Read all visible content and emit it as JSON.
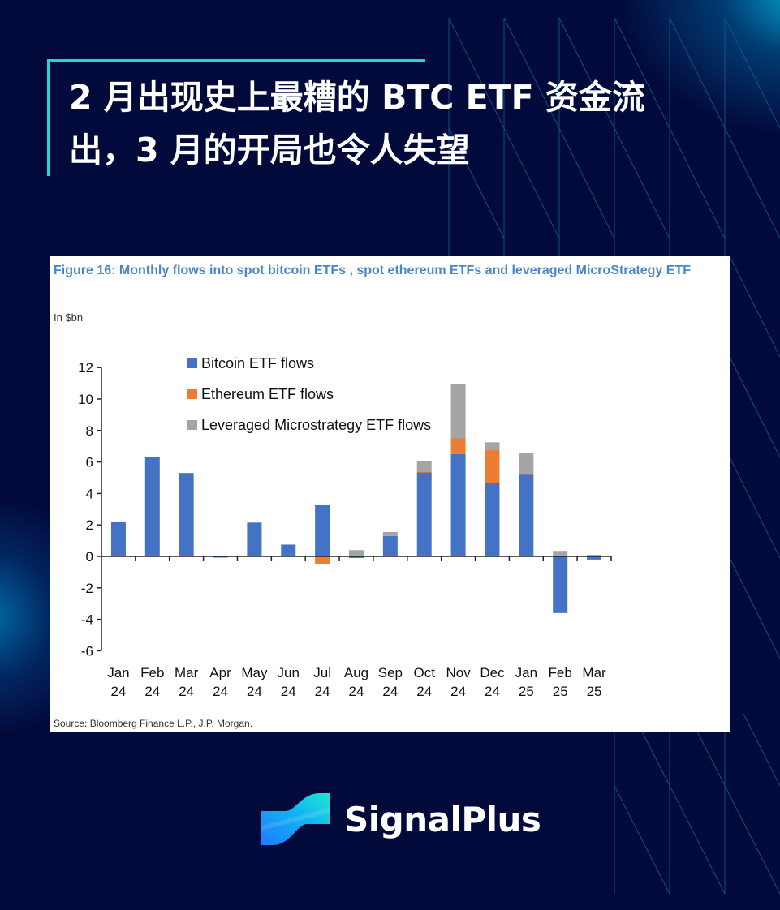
{
  "header": {
    "title_line1": "2 月出现史上最糟的 BTC ETF 资金流",
    "title_line2": "出，3 月的开局也令人失望"
  },
  "figure": {
    "title": "Figure 16: Monthly flows into spot bitcoin ETFs , spot ethereum ETFs and leveraged MicroStrategy ETF",
    "unit_label": "In $bn",
    "source": "Source: Bloomberg Finance L.P., J.P. Morgan."
  },
  "legend": [
    {
      "label": "Bitcoin ETF flows",
      "color": "#4472c4"
    },
    {
      "label": "Ethereum ETF flows",
      "color": "#ed7d31"
    },
    {
      "label": "Leveraged Microstrategy ETF flows",
      "color": "#a5a5a5"
    }
  ],
  "chart_data": {
    "type": "bar",
    "stacked": true,
    "title": "Figure 16: Monthly flows into spot bitcoin ETFs , spot ethereum ETFs and leveraged MicroStrategy ETF",
    "xlabel": "",
    "ylabel": "In $bn",
    "ylim": [
      -6,
      12
    ],
    "yticks": [
      12,
      10,
      8,
      6,
      4,
      2,
      0,
      -2,
      -4,
      -6
    ],
    "grid": false,
    "legend_position": "top-left inside",
    "categories": [
      "Jan 24",
      "Feb 24",
      "Mar 24",
      "Apr 24",
      "May 24",
      "Jun 24",
      "Jul 24",
      "Aug 24",
      "Sep 24",
      "Oct 24",
      "Nov 24",
      "Dec 24",
      "Jan 25",
      "Feb 25",
      "Mar 25"
    ],
    "series": [
      {
        "name": "Bitcoin ETF flows",
        "color": "#4472c4",
        "values": [
          2.2,
          6.3,
          5.3,
          -0.05,
          2.15,
          0.75,
          3.25,
          -0.1,
          1.3,
          5.35,
          6.5,
          4.65,
          5.2,
          -3.6,
          -0.2
        ]
      },
      {
        "name": "Ethereum ETF flows",
        "color": "#ed7d31",
        "values": [
          0,
          0,
          0,
          0,
          0,
          0,
          -0.5,
          0,
          0,
          0.05,
          1.0,
          2.1,
          0.1,
          0,
          0
        ]
      },
      {
        "name": "Leveraged Microstrategy ETF flows",
        "color": "#a5a5a5",
        "values": [
          0,
          0,
          0,
          0,
          0,
          0,
          0,
          0.4,
          0.25,
          0.65,
          3.45,
          0.5,
          1.3,
          0.35,
          0.1
        ]
      }
    ]
  },
  "brand": {
    "name": "SignalPlus",
    "logo_icon": "signalplus-wave-logo"
  },
  "colors": {
    "background": "#020a3c",
    "accent": "#1fd6d6",
    "figure_title": "#4a86c5"
  }
}
